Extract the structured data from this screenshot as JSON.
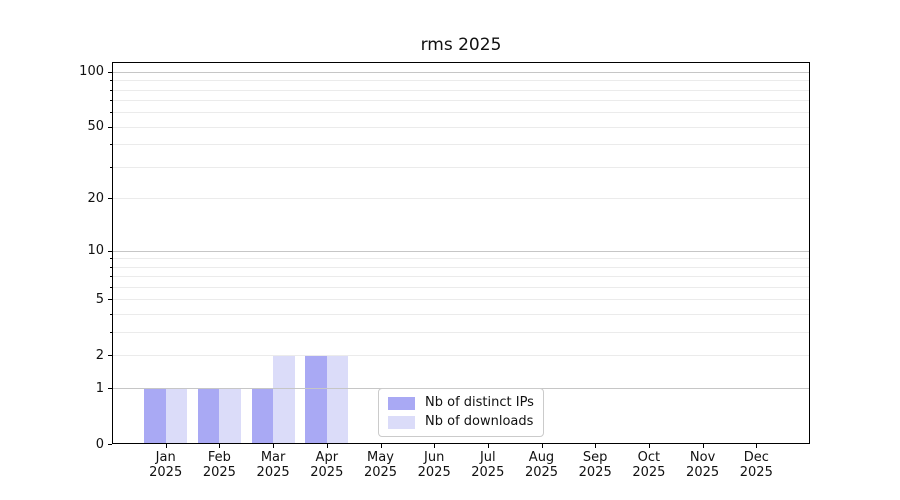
{
  "figure": {
    "title": "rms 2025"
  },
  "chart_data": {
    "type": "bar",
    "title": "rms 2025",
    "categories": [
      "Jan",
      "Feb",
      "Mar",
      "Apr",
      "May",
      "Jun",
      "Jul",
      "Aug",
      "Sep",
      "Oct",
      "Nov",
      "Dec"
    ],
    "category_year": "2025",
    "series": [
      {
        "name": "Nb of distinct IPs",
        "color": "#a9a9f4",
        "values": [
          1,
          1,
          1,
          2,
          0,
          0,
          0,
          0,
          0,
          0,
          0,
          0
        ]
      },
      {
        "name": "Nb of downloads",
        "color": "#dbdcf9",
        "values": [
          1,
          1,
          2,
          2,
          0,
          0,
          0,
          0,
          0,
          0,
          0,
          0
        ]
      }
    ],
    "y_scale": "log1p",
    "ylim": [
      0,
      113
    ],
    "y_major_ticks": [
      0,
      1,
      2,
      5,
      10,
      20,
      50,
      100
    ],
    "y_minor_ticks": [
      3,
      4,
      6,
      7,
      8,
      9,
      30,
      40,
      60,
      70,
      80,
      90
    ],
    "y_decade_gridlines": [
      1,
      10,
      100
    ],
    "grid": true,
    "legend_position": "lower center"
  },
  "colors": {
    "grid_decade": "#c6c6c6",
    "grid_minor": "#ebebeb",
    "frame": "#000000",
    "bar_ips": "#a9a9f4",
    "bar_downloads": "#dbdcf9"
  }
}
